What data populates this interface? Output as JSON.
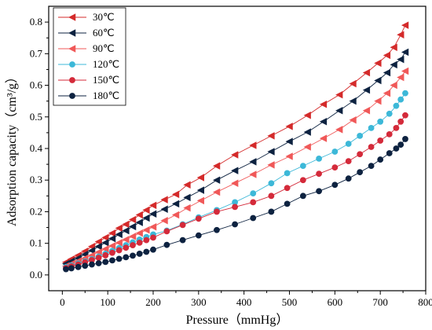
{
  "chart_data": {
    "type": "line",
    "xlabel": "Pressure（mmHg）",
    "ylabel": "Adsorption capacity（cm³/g）",
    "xlim": [
      -30,
      800
    ],
    "ylim": [
      -0.05,
      0.85
    ],
    "xticks": [
      0,
      100,
      200,
      300,
      400,
      500,
      600,
      700,
      800
    ],
    "yticks": [
      0.0,
      0.1,
      0.2,
      0.3,
      0.4,
      0.5,
      0.6,
      0.7,
      0.8
    ],
    "grid": false,
    "legend_position": "top-left",
    "series": [
      {
        "name": "30℃",
        "color": "#d42a2a",
        "marker": "triangle-left",
        "points": [
          [
            8,
            0.04
          ],
          [
            20,
            0.05
          ],
          [
            35,
            0.062
          ],
          [
            50,
            0.075
          ],
          [
            65,
            0.09
          ],
          [
            80,
            0.105
          ],
          [
            95,
            0.118
          ],
          [
            110,
            0.132
          ],
          [
            125,
            0.148
          ],
          [
            140,
            0.16
          ],
          [
            155,
            0.175
          ],
          [
            170,
            0.19
          ],
          [
            185,
            0.205
          ],
          [
            200,
            0.22
          ],
          [
            225,
            0.238
          ],
          [
            250,
            0.255
          ],
          [
            275,
            0.285
          ],
          [
            305,
            0.308
          ],
          [
            340,
            0.345
          ],
          [
            380,
            0.38
          ],
          [
            420,
            0.41
          ],
          [
            460,
            0.44
          ],
          [
            500,
            0.47
          ],
          [
            540,
            0.505
          ],
          [
            575,
            0.54
          ],
          [
            610,
            0.57
          ],
          [
            640,
            0.605
          ],
          [
            670,
            0.64
          ],
          [
            695,
            0.67
          ],
          [
            715,
            0.695
          ],
          [
            730,
            0.72
          ],
          [
            745,
            0.76
          ],
          [
            755,
            0.79
          ]
        ]
      },
      {
        "name": "60℃",
        "color": "#0d2240",
        "marker": "triangle-left",
        "points": [
          [
            8,
            0.035
          ],
          [
            20,
            0.043
          ],
          [
            35,
            0.053
          ],
          [
            50,
            0.065
          ],
          [
            65,
            0.077
          ],
          [
            80,
            0.09
          ],
          [
            95,
            0.102
          ],
          [
            110,
            0.115
          ],
          [
            125,
            0.128
          ],
          [
            140,
            0.14
          ],
          [
            155,
            0.153
          ],
          [
            170,
            0.166
          ],
          [
            185,
            0.18
          ],
          [
            200,
            0.193
          ],
          [
            225,
            0.208
          ],
          [
            250,
            0.225
          ],
          [
            275,
            0.245
          ],
          [
            305,
            0.268
          ],
          [
            340,
            0.3
          ],
          [
            380,
            0.33
          ],
          [
            420,
            0.358
          ],
          [
            460,
            0.39
          ],
          [
            500,
            0.422
          ],
          [
            540,
            0.452
          ],
          [
            575,
            0.485
          ],
          [
            610,
            0.52
          ],
          [
            640,
            0.55
          ],
          [
            670,
            0.585
          ],
          [
            695,
            0.615
          ],
          [
            715,
            0.64
          ],
          [
            730,
            0.665
          ],
          [
            745,
            0.682
          ],
          [
            755,
            0.705
          ]
        ]
      },
      {
        "name": "90℃",
        "color": "#f05858",
        "marker": "triangle-left",
        "points": [
          [
            8,
            0.028
          ],
          [
            20,
            0.035
          ],
          [
            35,
            0.044
          ],
          [
            50,
            0.053
          ],
          [
            65,
            0.062
          ],
          [
            80,
            0.072
          ],
          [
            95,
            0.082
          ],
          [
            110,
            0.092
          ],
          [
            125,
            0.102
          ],
          [
            140,
            0.112
          ],
          [
            155,
            0.122
          ],
          [
            170,
            0.132
          ],
          [
            185,
            0.142
          ],
          [
            200,
            0.152
          ],
          [
            225,
            0.172
          ],
          [
            250,
            0.19
          ],
          [
            275,
            0.212
          ],
          [
            305,
            0.235
          ],
          [
            340,
            0.262
          ],
          [
            380,
            0.29
          ],
          [
            420,
            0.318
          ],
          [
            460,
            0.348
          ],
          [
            500,
            0.375
          ],
          [
            540,
            0.405
          ],
          [
            575,
            0.432
          ],
          [
            610,
            0.46
          ],
          [
            640,
            0.49
          ],
          [
            670,
            0.52
          ],
          [
            695,
            0.55
          ],
          [
            715,
            0.575
          ],
          [
            730,
            0.6
          ],
          [
            745,
            0.625
          ],
          [
            755,
            0.645
          ]
        ]
      },
      {
        "name": "120℃",
        "color": "#3cb8d8",
        "marker": "circle",
        "points": [
          [
            8,
            0.025
          ],
          [
            20,
            0.03
          ],
          [
            35,
            0.036
          ],
          [
            50,
            0.043
          ],
          [
            65,
            0.05
          ],
          [
            80,
            0.058
          ],
          [
            95,
            0.067
          ],
          [
            110,
            0.076
          ],
          [
            125,
            0.085
          ],
          [
            140,
            0.094
          ],
          [
            155,
            0.103
          ],
          [
            170,
            0.112
          ],
          [
            185,
            0.12
          ],
          [
            200,
            0.128
          ],
          [
            230,
            0.14
          ],
          [
            265,
            0.16
          ],
          [
            300,
            0.182
          ],
          [
            340,
            0.205
          ],
          [
            380,
            0.23
          ],
          [
            420,
            0.258
          ],
          [
            460,
            0.29
          ],
          [
            495,
            0.322
          ],
          [
            530,
            0.345
          ],
          [
            565,
            0.368
          ],
          [
            600,
            0.39
          ],
          [
            630,
            0.415
          ],
          [
            655,
            0.44
          ],
          [
            680,
            0.465
          ],
          [
            700,
            0.485
          ],
          [
            720,
            0.51
          ],
          [
            735,
            0.535
          ],
          [
            745,
            0.555
          ],
          [
            755,
            0.575
          ]
        ]
      },
      {
        "name": "150℃",
        "color": "#d42a3a",
        "marker": "circle",
        "points": [
          [
            8,
            0.022
          ],
          [
            20,
            0.027
          ],
          [
            35,
            0.033
          ],
          [
            50,
            0.04
          ],
          [
            65,
            0.047
          ],
          [
            80,
            0.054
          ],
          [
            95,
            0.062
          ],
          [
            110,
            0.07
          ],
          [
            125,
            0.078
          ],
          [
            140,
            0.086
          ],
          [
            155,
            0.094
          ],
          [
            170,
            0.102
          ],
          [
            185,
            0.11
          ],
          [
            200,
            0.118
          ],
          [
            230,
            0.138
          ],
          [
            265,
            0.158
          ],
          [
            300,
            0.178
          ],
          [
            340,
            0.2
          ],
          [
            380,
            0.215
          ],
          [
            420,
            0.23
          ],
          [
            460,
            0.25
          ],
          [
            495,
            0.275
          ],
          [
            530,
            0.3
          ],
          [
            565,
            0.32
          ],
          [
            600,
            0.34
          ],
          [
            630,
            0.36
          ],
          [
            655,
            0.382
          ],
          [
            680,
            0.405
          ],
          [
            700,
            0.425
          ],
          [
            720,
            0.445
          ],
          [
            735,
            0.465
          ],
          [
            745,
            0.485
          ],
          [
            755,
            0.505
          ]
        ]
      },
      {
        "name": "180℃",
        "color": "#0d2240",
        "marker": "circle",
        "points": [
          [
            8,
            0.018
          ],
          [
            20,
            0.021
          ],
          [
            35,
            0.025
          ],
          [
            50,
            0.029
          ],
          [
            65,
            0.033
          ],
          [
            80,
            0.037
          ],
          [
            95,
            0.041
          ],
          [
            110,
            0.046
          ],
          [
            125,
            0.051
          ],
          [
            140,
            0.056
          ],
          [
            155,
            0.061
          ],
          [
            170,
            0.067
          ],
          [
            185,
            0.073
          ],
          [
            200,
            0.08
          ],
          [
            230,
            0.095
          ],
          [
            265,
            0.11
          ],
          [
            300,
            0.125
          ],
          [
            340,
            0.142
          ],
          [
            380,
            0.16
          ],
          [
            420,
            0.18
          ],
          [
            460,
            0.2
          ],
          [
            495,
            0.225
          ],
          [
            530,
            0.25
          ],
          [
            565,
            0.265
          ],
          [
            600,
            0.285
          ],
          [
            630,
            0.305
          ],
          [
            655,
            0.325
          ],
          [
            680,
            0.345
          ],
          [
            700,
            0.365
          ],
          [
            720,
            0.385
          ],
          [
            735,
            0.4
          ],
          [
            745,
            0.412
          ],
          [
            755,
            0.43
          ]
        ]
      }
    ]
  }
}
